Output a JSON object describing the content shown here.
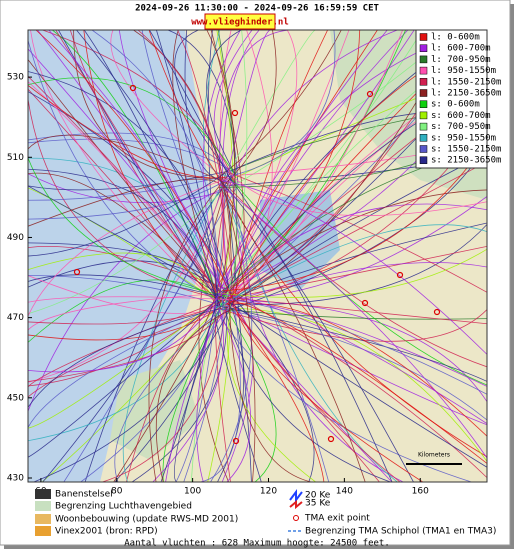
{
  "header": {
    "period": "2024-09-26 11:30:00 - 2024-09-26 16:59:59 CET",
    "site": "www.vlieghinder.nl"
  },
  "map": {
    "xlim": [
      56.6,
      177.6
    ],
    "ylim": [
      429,
      541.75
    ],
    "xticks": [
      60,
      80,
      100,
      120,
      140,
      160
    ],
    "yticks": [
      430,
      450,
      470,
      490,
      510,
      530
    ],
    "scale_label": "Kilometers"
  },
  "legend": [
    {
      "label": "l: 0-600m",
      "color": "#e01010"
    },
    {
      "label": "l: 600-700m",
      "color": "#a020e0"
    },
    {
      "label": "l: 700-950m",
      "color": "#2a7a2a"
    },
    {
      "label": "l: 950-1550m",
      "color": "#ff50b0"
    },
    {
      "label": "l: 1550-2150m",
      "color": "#d02050"
    },
    {
      "label": "l: 2150-3650m",
      "color": "#8b2020"
    },
    {
      "label": "s: 0-600m",
      "color": "#10d010"
    },
    {
      "label": "s: 600-700m",
      "color": "#a0f000"
    },
    {
      "label": "s: 700-950m",
      "color": "#80f080"
    },
    {
      "label": "s: 950-1550m",
      "color": "#30b0c0"
    },
    {
      "label": "s: 1550-2150m",
      "color": "#5858c8"
    },
    {
      "label": "s: 2150-3650m",
      "color": "#28288a"
    }
  ],
  "map_key": [
    "Banenstelsel",
    "Begrenzing Luchthavengebied",
    "Woonbebouwing (update RWS-MD 2001)",
    "Vinex2001 (bron: RPD)",
    "20 Ke",
    "35 Ke",
    "TMA exit point",
    "Begrenzing TMA Schiphol  (TMA1 en TMA3)"
  ],
  "footer": "Aantal vluchten : 628 Maximum hoogte: 24500 feet."
}
